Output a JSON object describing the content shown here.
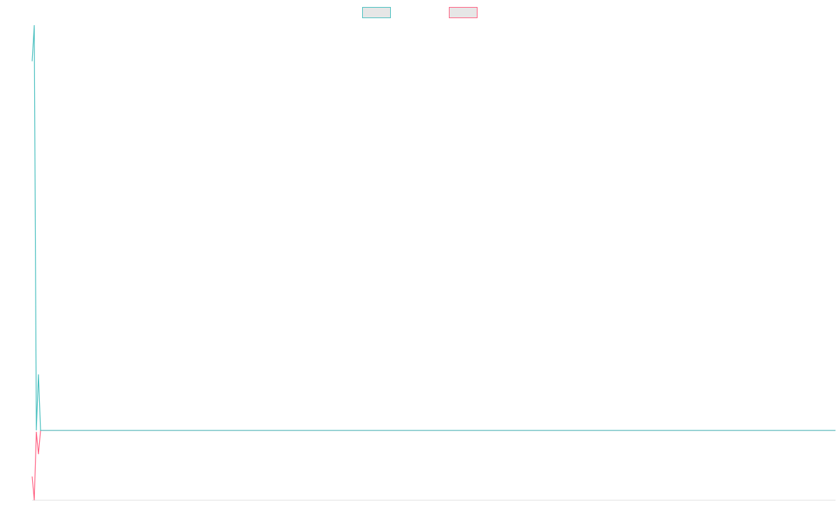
{
  "chart_data": {
    "type": "line",
    "x": [
      0,
      1,
      2,
      3,
      4,
      383
    ],
    "xlim": [
      0,
      383
    ],
    "ylim": [
      0,
      100
    ],
    "grid": false,
    "legend": "top",
    "series": [
      {
        "color": "#4bc0c0",
        "values": [
          92.4,
          100,
          14.7,
          26.5,
          14.7,
          14.7
        ]
      },
      {
        "color": "#ff6384",
        "values": [
          5,
          0,
          14.4,
          9.7,
          14.7,
          14.7
        ]
      }
    ]
  }
}
